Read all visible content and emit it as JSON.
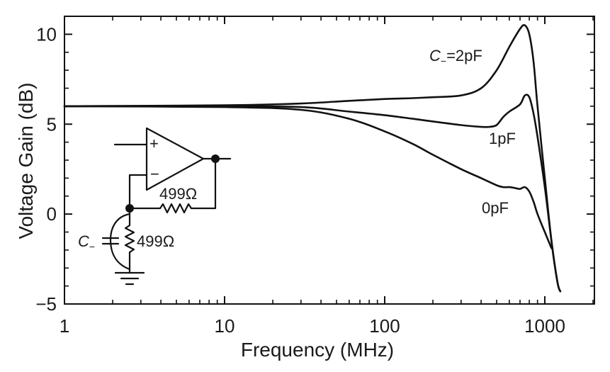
{
  "chart_data": {
    "type": "line",
    "title": "",
    "xlabel": "Frequency (MHz)",
    "ylabel": "Voltage Gain (dB)",
    "xscale": "log",
    "xlim": [
      1,
      2000
    ],
    "ylim": [
      -5,
      11
    ],
    "xticks": [
      1,
      10,
      100,
      1000
    ],
    "xtick_labels": [
      "1",
      "10",
      "100",
      "1000"
    ],
    "yticks": [
      -5,
      0,
      5,
      10
    ],
    "ytick_labels": [
      "−5",
      "0",
      "5",
      "10"
    ],
    "grid": false,
    "series": [
      {
        "name": "C₋=2pF",
        "x": [
          1,
          10,
          30,
          60,
          100,
          150,
          200,
          300,
          400,
          500,
          600,
          700,
          750,
          800,
          850,
          900,
          1000,
          1100,
          1200,
          1250
        ],
        "y": [
          6.0,
          6.05,
          6.15,
          6.3,
          6.4,
          6.45,
          6.5,
          6.6,
          7.0,
          8.0,
          9.3,
          10.3,
          10.5,
          10.0,
          8.5,
          6.0,
          2.0,
          -1.5,
          -3.8,
          -4.3
        ]
      },
      {
        "name": "1pF",
        "x": [
          1,
          10,
          30,
          60,
          100,
          150,
          200,
          300,
          400,
          450,
          500,
          550,
          600,
          700,
          750,
          800,
          850,
          900,
          1000,
          1100,
          1200,
          1250
        ],
        "y": [
          6.0,
          6.0,
          5.95,
          5.7,
          5.5,
          5.3,
          5.15,
          4.95,
          4.85,
          4.85,
          4.95,
          5.4,
          5.7,
          6.1,
          6.6,
          6.5,
          5.6,
          4.3,
          1.5,
          -1.5,
          -3.8,
          -4.3
        ]
      },
      {
        "name": "0pF",
        "x": [
          1,
          10,
          30,
          60,
          100,
          150,
          200,
          300,
          400,
          500,
          550,
          600,
          650,
          700,
          750,
          800,
          850,
          900,
          1000,
          1100
        ],
        "y": [
          6.0,
          5.95,
          5.8,
          5.3,
          4.6,
          3.9,
          3.3,
          2.5,
          2.0,
          1.6,
          1.5,
          1.5,
          1.45,
          1.4,
          1.5,
          1.25,
          0.7,
          0.0,
          -1.0,
          -1.9
        ]
      }
    ],
    "annotations": [
      {
        "text_main": "C",
        "text_sub": "−",
        "text_after": "=2pF"
      },
      {
        "text": "1pF"
      },
      {
        "text": "0pF"
      }
    ],
    "inset_schematic": {
      "input_plus": "+",
      "input_minus": "−",
      "feedback_resistor": "499Ω",
      "ground_resistor": "499Ω",
      "capacitor_label_main": "C",
      "capacitor_label_sub": "−"
    }
  }
}
